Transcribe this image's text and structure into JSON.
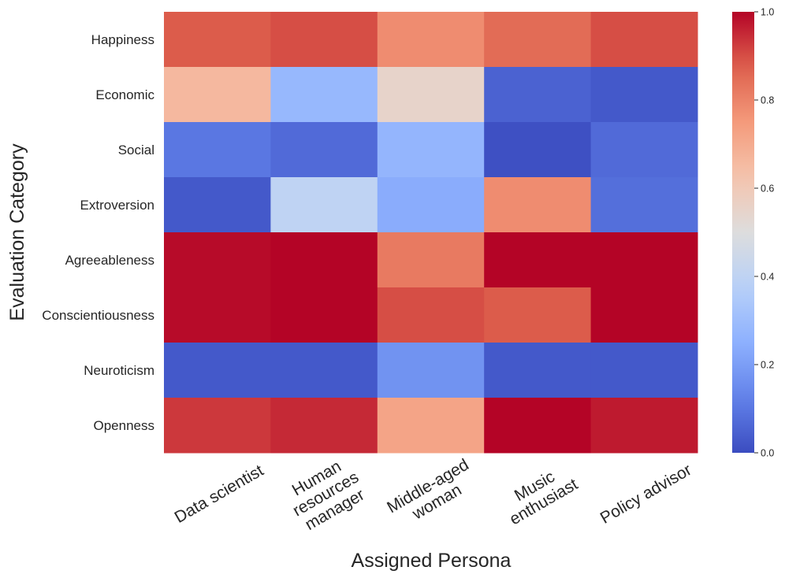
{
  "chart_data": {
    "type": "heatmap",
    "title": "",
    "xlabel": "Assigned Persona",
    "ylabel": "Evaluation Category",
    "x_categories": [
      "Data scientist",
      "Human resources manager",
      "Middle-aged woman",
      "Music enthusiast",
      "Policy advisor"
    ],
    "x_tick_lines": [
      [
        "Data scientist"
      ],
      [
        "Human",
        "resources",
        "manager"
      ],
      [
        "Middle-aged",
        "woman"
      ],
      [
        "Music",
        "enthusiast"
      ],
      [
        "Policy advisor"
      ]
    ],
    "y_categories": [
      "Happiness",
      "Economic",
      "Social",
      "Extroversion",
      "Agreeableness",
      "Conscientiousness",
      "Neuroticism",
      "Openness"
    ],
    "values": [
      [
        0.88,
        0.9,
        0.78,
        0.85,
        0.9
      ],
      [
        0.66,
        0.28,
        0.55,
        0.05,
        0.03
      ],
      [
        0.1,
        0.07,
        0.27,
        0.01,
        0.07
      ],
      [
        0.03,
        0.4,
        0.24,
        0.78,
        0.08
      ],
      [
        0.99,
        1.0,
        0.82,
        1.0,
        1.0
      ],
      [
        0.99,
        1.0,
        0.9,
        0.88,
        1.0
      ],
      [
        0.03,
        0.03,
        0.17,
        0.03,
        0.03
      ],
      [
        0.93,
        0.95,
        0.72,
        1.0,
        0.97
      ]
    ],
    "colorbar": {
      "colormap": "coolwarm",
      "vmin": 0.0,
      "vmax": 1.0,
      "ticks": [
        0.0,
        0.2,
        0.4,
        0.6,
        0.8,
        1.0
      ],
      "tick_labels": [
        "0.0",
        "0.2",
        "0.4",
        "0.6",
        "0.8",
        "1.0"
      ]
    }
  }
}
